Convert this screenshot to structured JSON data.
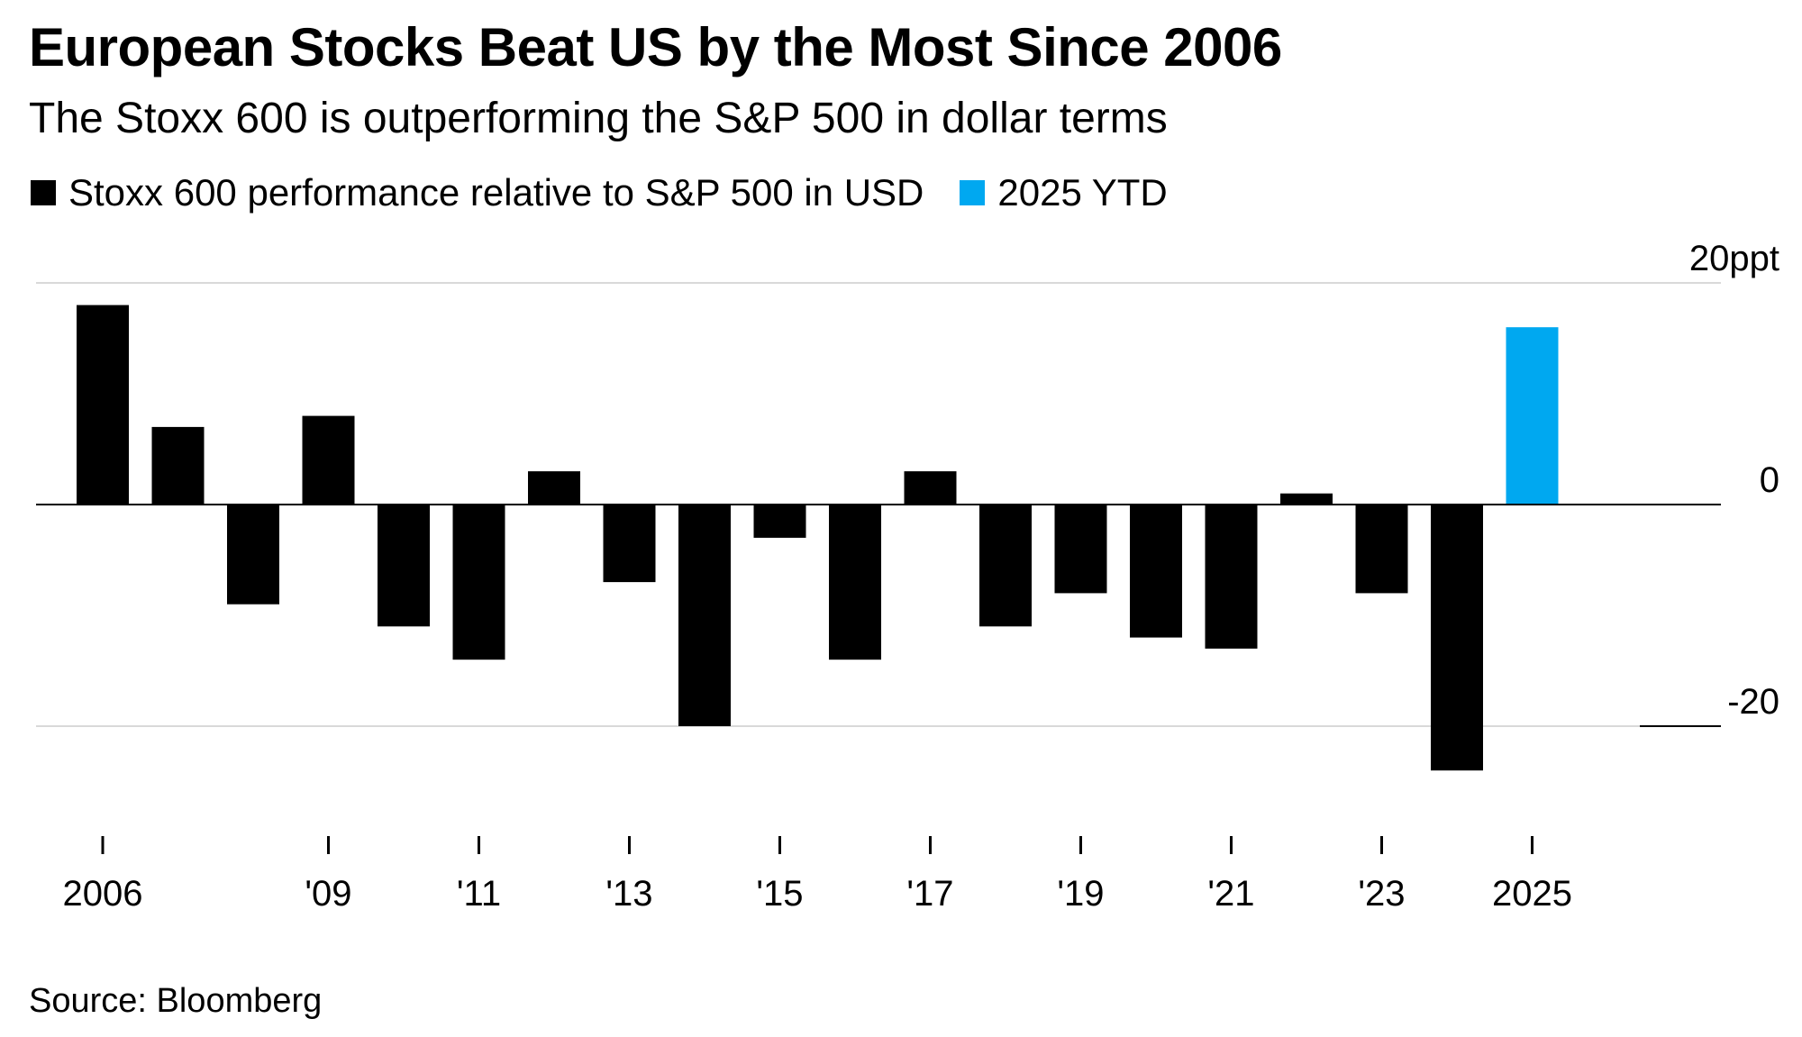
{
  "title": "European Stocks Beat US by the Most Since 2006",
  "subtitle": "The Stoxx 600 is outperforming the S&P 500 in dollar terms",
  "legend": [
    {
      "label": "Stoxx 600 performance relative to S&P 500 in USD",
      "color": "#000000"
    },
    {
      "label": "2025 YTD",
      "color": "#00a8f0"
    }
  ],
  "source": "Source: Bloomberg",
  "chart_data": {
    "type": "bar",
    "categories": [
      "2006",
      "2007",
      "2008",
      "2009",
      "2010",
      "2011",
      "2012",
      "2013",
      "2014",
      "2015",
      "2016",
      "2017",
      "2018",
      "2019",
      "2020",
      "2021",
      "2022",
      "2023",
      "2024",
      "2025"
    ],
    "series": [
      {
        "name": "Stoxx 600 performance relative to S&P 500 in USD",
        "values": [
          18,
          7,
          -9,
          8,
          -11,
          -14,
          3,
          -7,
          -20,
          -3,
          -14,
          3,
          -11,
          -8,
          -12,
          -13,
          1,
          -8,
          -24,
          null
        ],
        "color": "#000000"
      },
      {
        "name": "2025 YTD",
        "values": [
          null,
          null,
          null,
          null,
          null,
          null,
          null,
          null,
          null,
          null,
          null,
          null,
          null,
          null,
          null,
          null,
          null,
          null,
          null,
          16
        ],
        "color": "#00a8f0"
      }
    ],
    "ylim": [
      -30,
      22
    ],
    "yticks": [
      {
        "value": 20,
        "label": "20ppt"
      },
      {
        "value": 0,
        "label": "0"
      },
      {
        "value": -20,
        "label": "-20"
      }
    ],
    "xticks": [
      {
        "category": "2006",
        "label": "2006"
      },
      {
        "category": "2009",
        "label": "'09"
      },
      {
        "category": "2011",
        "label": "'11"
      },
      {
        "category": "2013",
        "label": "'13"
      },
      {
        "category": "2015",
        "label": "'15"
      },
      {
        "category": "2017",
        "label": "'17"
      },
      {
        "category": "2019",
        "label": "'19"
      },
      {
        "category": "2021",
        "label": "'21"
      },
      {
        "category": "2023",
        "label": "'23"
      },
      {
        "category": "2025",
        "label": "2025"
      }
    ],
    "grid": true,
    "legend_position": "top-left"
  }
}
